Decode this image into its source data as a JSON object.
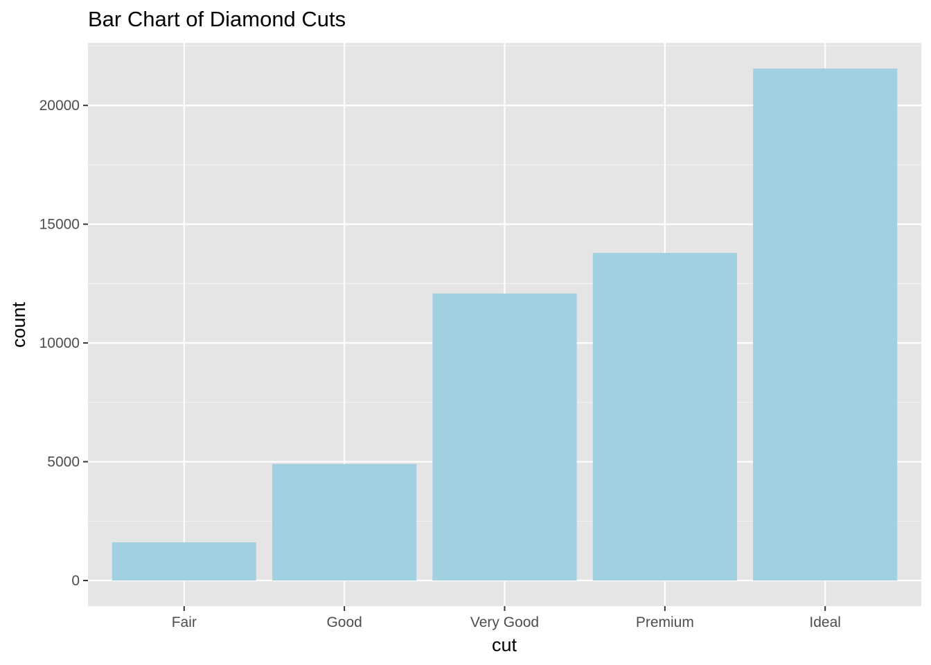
{
  "chart_data": {
    "type": "bar",
    "title": "Bar Chart of Diamond Cuts",
    "xlabel": "cut",
    "ylabel": "count",
    "categories": [
      "Fair",
      "Good",
      "Very Good",
      "Premium",
      "Ideal"
    ],
    "values": [
      1610,
      4906,
      12082,
      13791,
      21551
    ],
    "ylim": [
      -1078,
      22629
    ],
    "yticks": [
      0,
      5000,
      10000,
      15000,
      20000
    ],
    "ytick_labels": [
      "0",
      "5000",
      "10000",
      "15000",
      "20000"
    ],
    "grid": true,
    "legend": "none",
    "colors": {
      "bar": "#a1d0e1",
      "panel_background": "#e5e5e5",
      "grid_major": "#ffffff",
      "grid_minor": "#f2f2f2",
      "tick_text": "#4d4d4d",
      "tick_mark": "#333333"
    }
  }
}
